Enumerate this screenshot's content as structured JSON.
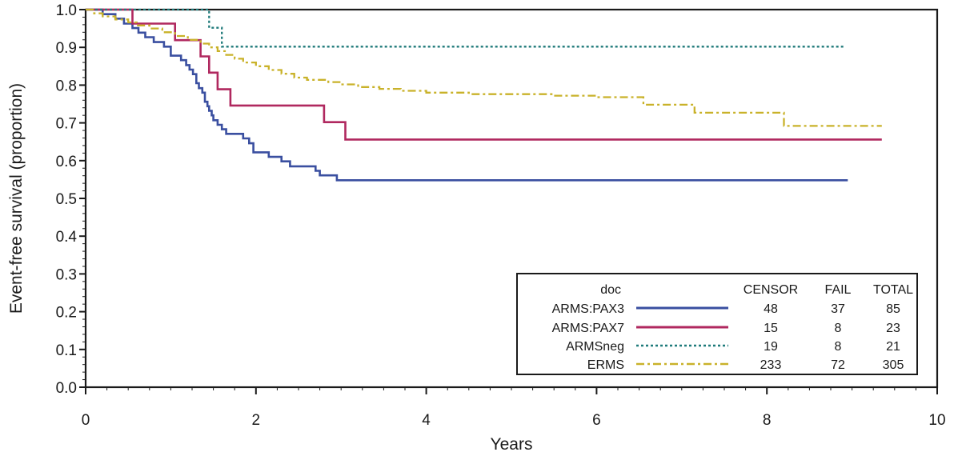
{
  "chart_data": {
    "type": "line",
    "title": "",
    "xlabel": "Years",
    "ylabel": "Event-free survival (proportion)",
    "xlim": [
      0,
      10
    ],
    "ylim": [
      0,
      1
    ],
    "x_ticks": [
      "0",
      "2",
      "4",
      "6",
      "8",
      "10"
    ],
    "y_ticks": [
      "0.0",
      "0.1",
      "0.2",
      "0.3",
      "0.4",
      "0.5",
      "0.6",
      "0.7",
      "0.8",
      "0.9",
      "1.0"
    ],
    "grid": false,
    "step": true,
    "legend": {
      "placement": "bottom-right",
      "header": {
        "group": "doc",
        "censor": "CENSOR",
        "fail": "FAIL",
        "total": "TOTAL"
      },
      "rows": [
        {
          "label": "ARMS:PAX3",
          "censor": "48",
          "fail": "37",
          "total": "85"
        },
        {
          "label": "ARMS:PAX7",
          "censor": "15",
          "fail": "8",
          "total": "23"
        },
        {
          "label": "ARMSneg",
          "censor": "19",
          "fail": "8",
          "total": "21"
        },
        {
          "label": "ERMS",
          "censor": "233",
          "fail": "72",
          "total": "305"
        }
      ]
    },
    "series": [
      {
        "name": "ARMS:PAX3",
        "color": "#3a4fa0",
        "dash": "solid",
        "points": [
          [
            0,
            1.0
          ],
          [
            0.2,
            0.988
          ],
          [
            0.35,
            0.976
          ],
          [
            0.45,
            0.963
          ],
          [
            0.55,
            0.951
          ],
          [
            0.62,
            0.939
          ],
          [
            0.7,
            0.927
          ],
          [
            0.8,
            0.914
          ],
          [
            0.92,
            0.902
          ],
          [
            1.0,
            0.878
          ],
          [
            1.12,
            0.866
          ],
          [
            1.18,
            0.853
          ],
          [
            1.22,
            0.841
          ],
          [
            1.26,
            0.829
          ],
          [
            1.3,
            0.805
          ],
          [
            1.33,
            0.792
          ],
          [
            1.37,
            0.78
          ],
          [
            1.4,
            0.756
          ],
          [
            1.43,
            0.744
          ],
          [
            1.45,
            0.732
          ],
          [
            1.48,
            0.72
          ],
          [
            1.5,
            0.707
          ],
          [
            1.55,
            0.695
          ],
          [
            1.6,
            0.683
          ],
          [
            1.65,
            0.671
          ],
          [
            1.85,
            0.659
          ],
          [
            1.92,
            0.646
          ],
          [
            1.97,
            0.622
          ],
          [
            2.15,
            0.61
          ],
          [
            2.3,
            0.598
          ],
          [
            2.4,
            0.585
          ],
          [
            2.7,
            0.573
          ],
          [
            2.75,
            0.561
          ],
          [
            2.95,
            0.548
          ],
          [
            8.95,
            0.548
          ]
        ]
      },
      {
        "name": "ARMS:PAX7",
        "color": "#b0285f",
        "dash": "solid",
        "points": [
          [
            0,
            1.0
          ],
          [
            0.55,
            0.963
          ],
          [
            1.05,
            0.919
          ],
          [
            1.35,
            0.876
          ],
          [
            1.45,
            0.833
          ],
          [
            1.55,
            0.789
          ],
          [
            1.7,
            0.746
          ],
          [
            2.8,
            0.702
          ],
          [
            3.05,
            0.656
          ],
          [
            9.35,
            0.656
          ]
        ]
      },
      {
        "name": "ARMSneg",
        "color": "#1f7a7a",
        "dash": "dot",
        "points": [
          [
            0,
            1.0
          ],
          [
            1.45,
            0.952
          ],
          [
            1.6,
            0.902
          ],
          [
            8.9,
            0.902
          ]
        ]
      },
      {
        "name": "ERMS",
        "color": "#c9b22a",
        "dash": "dashdot",
        "points": [
          [
            0,
            1.0
          ],
          [
            0.1,
            0.99
          ],
          [
            0.2,
            0.982
          ],
          [
            0.35,
            0.974
          ],
          [
            0.5,
            0.966
          ],
          [
            0.6,
            0.958
          ],
          [
            0.75,
            0.95
          ],
          [
            0.9,
            0.94
          ],
          [
            1.05,
            0.93
          ],
          [
            1.2,
            0.92
          ],
          [
            1.35,
            0.91
          ],
          [
            1.45,
            0.9
          ],
          [
            1.55,
            0.89
          ],
          [
            1.65,
            0.88
          ],
          [
            1.75,
            0.87
          ],
          [
            1.85,
            0.86
          ],
          [
            2.0,
            0.85
          ],
          [
            2.15,
            0.84
          ],
          [
            2.3,
            0.83
          ],
          [
            2.45,
            0.82
          ],
          [
            2.6,
            0.814
          ],
          [
            2.85,
            0.808
          ],
          [
            3.0,
            0.802
          ],
          [
            3.2,
            0.795
          ],
          [
            3.45,
            0.79
          ],
          [
            3.7,
            0.785
          ],
          [
            4.0,
            0.78
          ],
          [
            4.5,
            0.776
          ],
          [
            5.5,
            0.772
          ],
          [
            6.0,
            0.768
          ],
          [
            6.55,
            0.748
          ],
          [
            7.15,
            0.727
          ],
          [
            8.2,
            0.692
          ],
          [
            9.35,
            0.692
          ]
        ]
      }
    ]
  }
}
